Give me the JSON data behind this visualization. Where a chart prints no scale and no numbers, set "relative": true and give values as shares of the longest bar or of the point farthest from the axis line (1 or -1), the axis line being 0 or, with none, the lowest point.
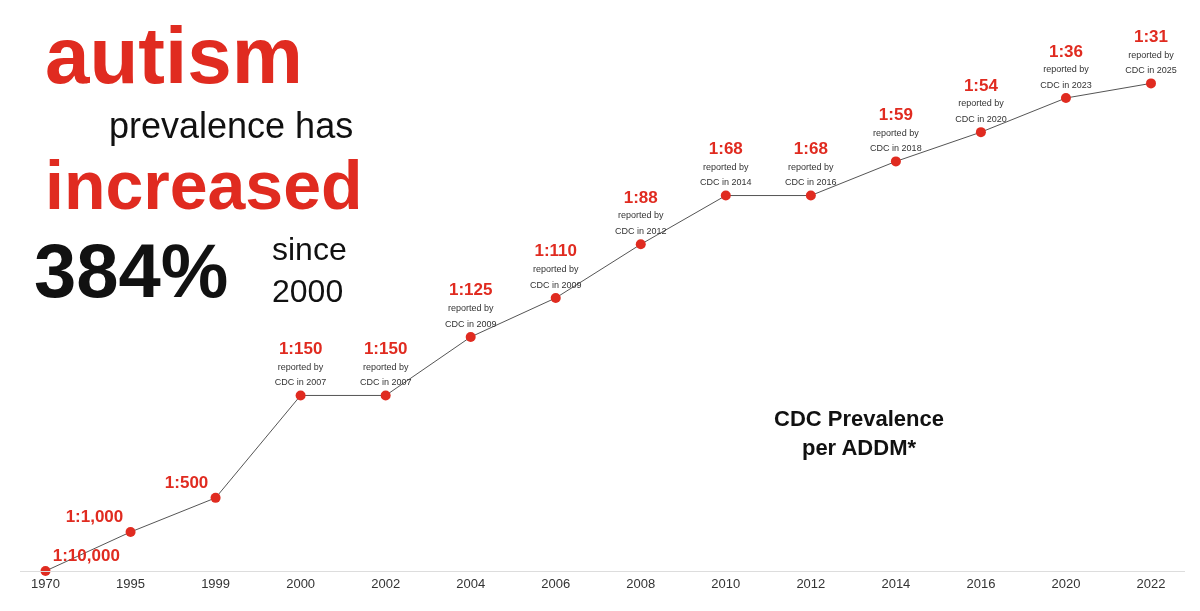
{
  "chart_data": {
    "type": "line",
    "relative": true,
    "categories": [
      "1970",
      "1995",
      "1999",
      "2000",
      "2002",
      "2004",
      "2006",
      "2008",
      "2010",
      "2012",
      "2014",
      "2016",
      "2020",
      "2022"
    ],
    "series": [
      {
        "color": "#e02b20",
        "values": [
          0,
          0.08,
          0.15,
          0.36,
          0.36,
          0.48,
          0.56,
          0.67,
          0.77,
          0.77,
          0.84,
          0.9,
          0.97,
          1
        ]
      }
    ],
    "value_labels": [
      "1:10,000",
      "1:1,000",
      "1:500",
      "1:150\nreported by\nCDC in 2007",
      "1:150\nreported by\nCDC in 2007",
      "1:125\nreported by\nCDC in 2009",
      "1:110\nreported by\nCDC in 2009",
      "1:88\nreported by\nCDC in 2012",
      "1:68\nreported by\nCDC in 2014",
      "1:68\nreported by\nCDC in 2016",
      "1:59\nreported by\nCDC in 2018",
      "1:54\nreported by\nCDC in 2020",
      "1:36\nreported by\nCDC in 2023",
      "1:31\nreported by\nCDC in 2025"
    ],
    "marker": "circle",
    "line_style": "solid",
    "legend": false,
    "annotations": [
      "autism",
      "prevalence has",
      "increased",
      "384%",
      "since\n2000",
      "CDC Prevalence\nper ADDM*"
    ]
  }
}
